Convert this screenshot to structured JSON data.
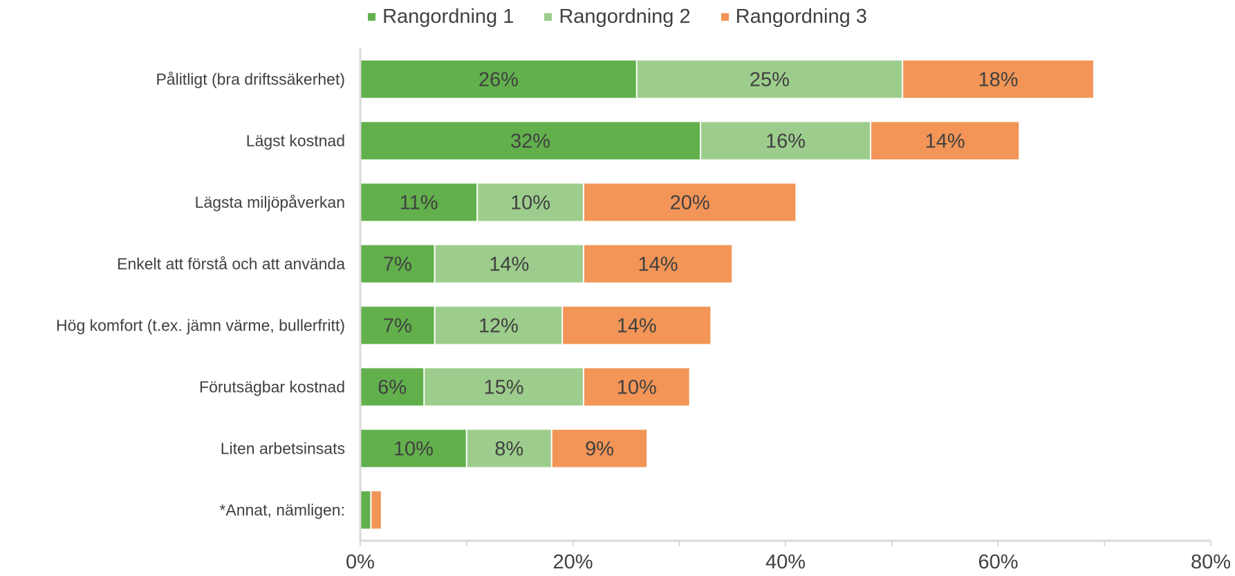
{
  "chart_data": {
    "type": "bar",
    "orientation": "horizontal",
    "stacked": true,
    "categories": [
      "Pålitligt (bra driftssäkerhet)",
      "Lägst kostnad",
      "Lägsta miljöpåverkan",
      "Enkelt att förstå och att använda",
      "Hög komfort (t.ex. jämn värme, bullerfritt)",
      "Förutsägbar kostnad",
      "Liten arbetsinsats",
      "*Annat, nämligen:"
    ],
    "series": [
      {
        "name": "Rangordning 1",
        "color": "#62b04c",
        "values": [
          26,
          32,
          11,
          7,
          7,
          6,
          10,
          1
        ],
        "labels": [
          "26%",
          "32%",
          "11%",
          "7%",
          "7%",
          "6%",
          "10%",
          ""
        ]
      },
      {
        "name": "Rangordning 2",
        "color": "#9dcd8c",
        "values": [
          25,
          16,
          10,
          14,
          12,
          15,
          8,
          0
        ],
        "labels": [
          "25%",
          "16%",
          "10%",
          "14%",
          "12%",
          "15%",
          "8%",
          ""
        ]
      },
      {
        "name": "Rangordning 3",
        "color": "#f29557",
        "values": [
          18,
          14,
          20,
          14,
          14,
          10,
          9,
          1
        ],
        "labels": [
          "18%",
          "14%",
          "20%",
          "14%",
          "14%",
          "10%",
          "9%",
          ""
        ]
      }
    ],
    "xlim": [
      0,
      80
    ],
    "xticks": [
      0,
      20,
      40,
      60,
      80
    ],
    "xtick_labels": [
      "0%",
      "20%",
      "40%",
      "60%",
      "80%"
    ],
    "legend_position": "top-center",
    "grid": false
  },
  "colors": {
    "text": "#404040",
    "axis": "#d9d9d9"
  }
}
